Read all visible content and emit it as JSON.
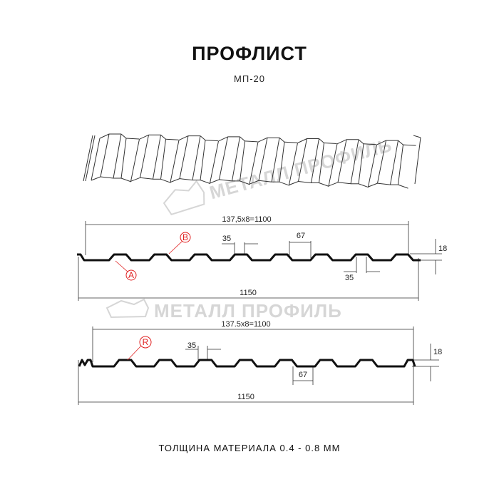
{
  "title": "ПРОФЛИСТ",
  "subtitle": "МП-20",
  "footer": "ТОЛЩИНА МАТЕРИАЛА 0.4 - 0.8 ММ",
  "watermark": "МЕТАЛЛ ПРОФИЛЬ",
  "profile_a": {
    "pitch_label": "137,5x8=1100",
    "width_label": "1150",
    "top_label": "35",
    "bottom_label": "35",
    "gap_label": "67",
    "height_label": "18",
    "marker_a": "A",
    "marker_b": "B"
  },
  "profile_r": {
    "pitch_label": "137.5x8=1100",
    "width_label": "1150",
    "top_label": "35",
    "gap_label": "67",
    "height_label": "18",
    "marker_r": "R"
  },
  "colors": {
    "line": "#111111",
    "marker": "#e02020",
    "watermark": "#d6d6d6"
  }
}
